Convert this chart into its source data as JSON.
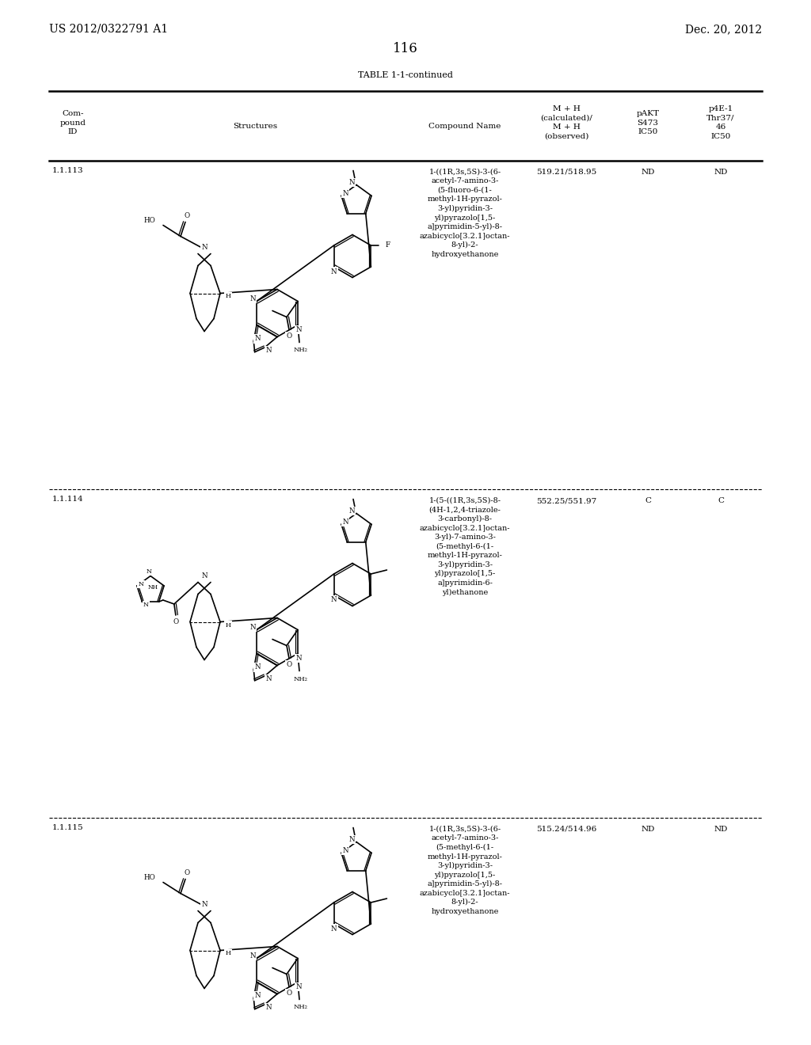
{
  "page_number": "116",
  "patent_number": "US 2012/0322791 A1",
  "patent_date": "Dec. 20, 2012",
  "table_title": "TABLE 1-1-continued",
  "col_headers": {
    "id": "Com-\npound\nID",
    "structures": "Structures",
    "name": "Compound Name",
    "mh": "M + H\n(calculated)/\nM + H\n(observed)",
    "pakt": "pAKT\nS473\nIC50",
    "p4e1": "p4E-1\nThr37/\n46\nIC50"
  },
  "rows": [
    {
      "id": "1.1.113",
      "compound_name": "1-((1R,3s,5S)-3-(6-\nacetyl-7-amino-3-\n(5-fluoro-6-(1-\nmethyl-1H-pyrazol-\n3-yl)pyridin-3-\nyl)pyrazolo[1,5-\na]pyrimidin-5-yl)-8-\nazabicyclo[3.2.1]octan-\n8-yl)-2-\nhydroxyethanone",
      "mh": "519.21/518.95",
      "pakt": "ND",
      "p4e1": "ND",
      "has_ho": true,
      "has_triazole": false,
      "has_fluoro": true,
      "has_methyl_pyridine": false
    },
    {
      "id": "1.1.114",
      "compound_name": "1-(5-((1R,3s,5S)-8-\n(4H-1,2,4-triazole-\n3-carbonyl)-8-\nazabicyclo[3.2.1]octan-\n3-yl)-7-amino-3-\n(5-methyl-6-(1-\nmethyl-1H-pyrazol-\n3-yl)pyridin-3-\nyl)pyrazolo[1,5-\na]pyrimidin-6-\nyl)ethanone",
      "mh": "552.25/551.97",
      "pakt": "C",
      "p4e1": "C",
      "has_ho": false,
      "has_triazole": true,
      "has_fluoro": false,
      "has_methyl_pyridine": true
    },
    {
      "id": "1.1.115",
      "compound_name": "1-((1R,3s,5S)-3-(6-\nacetyl-7-amino-3-\n(5-methyl-6-(1-\nmethyl-1H-pyrazol-\n3-yl)pyridin-3-\nyl)pyrazolo[1,5-\na]pyrimidin-5-yl)-8-\nazabicyclo[3.2.1]octan-\n8-yl)-2-\nhydroxyethanone",
      "mh": "515.24/514.96",
      "pakt": "ND",
      "p4e1": "ND",
      "has_ho": true,
      "has_triazole": false,
      "has_fluoro": false,
      "has_methyl_pyridine": true
    }
  ],
  "bg": "#ffffff",
  "fg": "#000000"
}
